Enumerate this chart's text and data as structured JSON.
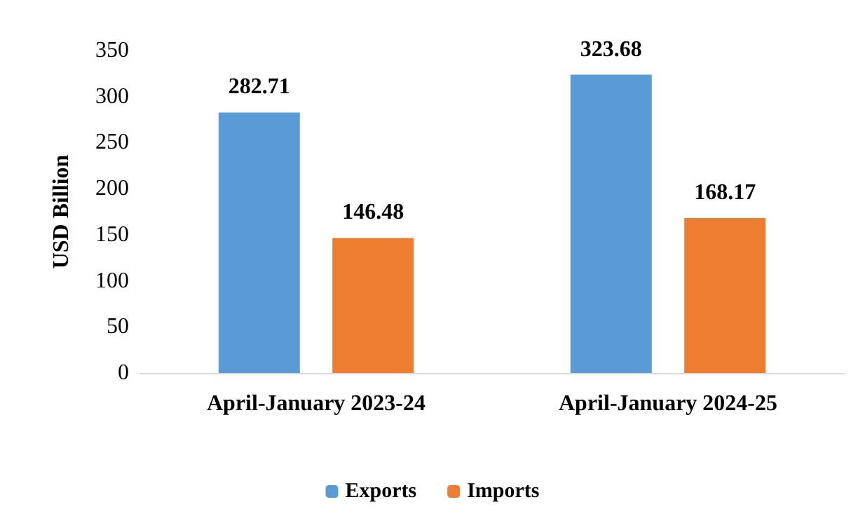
{
  "chart_data": {
    "type": "bar",
    "ylabel": "USD Billion",
    "categories": [
      "April-January 2023-24",
      "April-January 2024-25"
    ],
    "series": [
      {
        "name": "Exports",
        "color": "#5b9bd5",
        "values": [
          282.71,
          323.68
        ]
      },
      {
        "name": "Imports",
        "color": "#ed7d31",
        "values": [
          146.48,
          168.17
        ]
      }
    ],
    "ylim": [
      0,
      350
    ],
    "yticks": [
      0,
      50,
      100,
      150,
      200,
      250,
      300,
      350
    ],
    "grid": false,
    "legend": "bottom",
    "data_labels": true
  }
}
